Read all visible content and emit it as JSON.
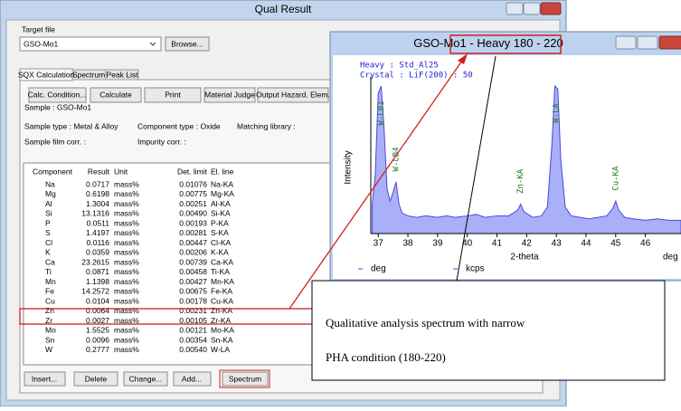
{
  "main_window": {
    "title": "Qual Result",
    "target_file_label": "Target file",
    "target_file": "GSO-Mo1",
    "browse_button": "Browse...",
    "tabs": [
      "SQX Calculation",
      "Spectrum",
      "Peak List"
    ],
    "toolbar_buttons": [
      "Calc. Condition...",
      "Calculate",
      "Print",
      "Material Judge",
      "Output Hazard. Elem."
    ],
    "sample": "Sample :  GSO-Mo1",
    "sample_type": "Sample type :  Metal & Alloy",
    "component_type": "Component type :  Oxide",
    "matching_library": "Matching library :",
    "sample_film_corr": "Sample film corr. :",
    "impurity_corr": "Impurity corr. :",
    "table": {
      "header": [
        "Component",
        "Result",
        "Unit",
        "Det. limit",
        "El. line"
      ],
      "rows": [
        [
          "Na",
          "0.0717",
          "mass%",
          "0.01076",
          "Na-KA"
        ],
        [
          "Mg",
          "0.6198",
          "mass%",
          "0.00775",
          "Mg-KA"
        ],
        [
          "Al",
          "1.3004",
          "mass%",
          "0.00251",
          "Al-KA"
        ],
        [
          "Si",
          "13.1316",
          "mass%",
          "0.00490",
          "Si-KA"
        ],
        [
          "P",
          "0.0511",
          "mass%",
          "0.00193",
          "P-KA"
        ],
        [
          "S",
          "1.4197",
          "mass%",
          "0.00281",
          "S-KA"
        ],
        [
          "Cl",
          "0.0116",
          "mass%",
          "0.00447",
          "Cl-KA"
        ],
        [
          "K",
          "0.0359",
          "mass%",
          "0.00206",
          "K-KA"
        ],
        [
          "Ca",
          "23.2615",
          "mass%",
          "0.00739",
          "Ca-KA"
        ],
        [
          "Ti",
          "0.0871",
          "mass%",
          "0.00458",
          "Ti-KA"
        ],
        [
          "Mn",
          "1.1398",
          "mass%",
          "0.00427",
          "Mn-KA"
        ],
        [
          "Fe",
          "14.2572",
          "mass%",
          "0.00675",
          "Fe-KA"
        ],
        [
          "Cu",
          "0.0104",
          "mass%",
          "0.00178",
          "Cu-KA"
        ],
        [
          "Zn",
          "0.0064",
          "mass%",
          "0.00231",
          "Zn-KA"
        ],
        [
          "Zr",
          "0.0027",
          "mass%",
          "0.00105",
          "Zr-KA"
        ],
        [
          "Mo",
          "1.5525",
          "mass%",
          "0.00121",
          "Mo-KA"
        ],
        [
          "Sn",
          "0.0096",
          "mass%",
          "0.00354",
          "Sn-KA"
        ],
        [
          "W",
          "0.2777",
          "mass%",
          "0.00540",
          "W-LA"
        ]
      ]
    },
    "bottom_buttons": [
      "Insert...",
      "Delete",
      "Change...",
      "Add...",
      "Spectrum"
    ]
  },
  "spectrum_window": {
    "title_parts": [
      "GSO-Mo1 - ",
      "Heavy 180 - 220"
    ],
    "condition": "Heavy : Std_Al25",
    "crystal": "Crystal : LiF(200) : 50",
    "chart_data": {
      "type": "area",
      "xlabel": "2-theta",
      "ylabel": "Intensity",
      "x_unit": "deg",
      "legend": [
        "deg",
        "kcps"
      ],
      "x": [
        36.8,
        36.9,
        37.0,
        37.1,
        37.2,
        37.3,
        37.4,
        37.5,
        37.6,
        37.7,
        37.8,
        38.0,
        38.3,
        38.6,
        39.0,
        39.3,
        39.6,
        40.0,
        40.3,
        40.6,
        41.0,
        41.4,
        41.7,
        41.8,
        41.9,
        42.2,
        42.5,
        42.7,
        42.85,
        42.95,
        43.05,
        43.15,
        43.3,
        43.5,
        43.8,
        44.1,
        44.4,
        44.7,
        44.9,
        45.0,
        45.1,
        45.3,
        45.6,
        46.0,
        46.4,
        46.8,
        47.2
      ],
      "series": [
        {
          "color": "#4848e0",
          "values": [
            20,
            40,
            95,
            100,
            70,
            30,
            22,
            28,
            35,
            20,
            14,
            12,
            11,
            12,
            11,
            12,
            11,
            12,
            13,
            11,
            12,
            12,
            16,
            20,
            15,
            11,
            12,
            18,
            60,
            100,
            98,
            50,
            18,
            12,
            11,
            10,
            11,
            12,
            17,
            22,
            16,
            11,
            10,
            9,
            10,
            9,
            9
          ]
        }
      ],
      "annotations": [
        {
          "label": "W-LB1",
          "x": 37.1
        },
        {
          "label": "W-LB4",
          "x": 37.6
        },
        {
          "label": "Zn-KA",
          "x": 41.8
        },
        {
          "label": "W-LA",
          "x": 43.0
        },
        {
          "label": "Cu-KA",
          "x": 45.0
        }
      ],
      "xlim": [
        36.75,
        47.2
      ],
      "xticks": [
        37,
        38,
        39,
        40,
        41,
        42,
        43,
        44,
        45,
        46
      ],
      "ylim": [
        0,
        100
      ]
    }
  },
  "callout": {
    "lines": [
      "Qualitative analysis spectrum with narrow",
      "PHA condition (180-220)"
    ]
  }
}
